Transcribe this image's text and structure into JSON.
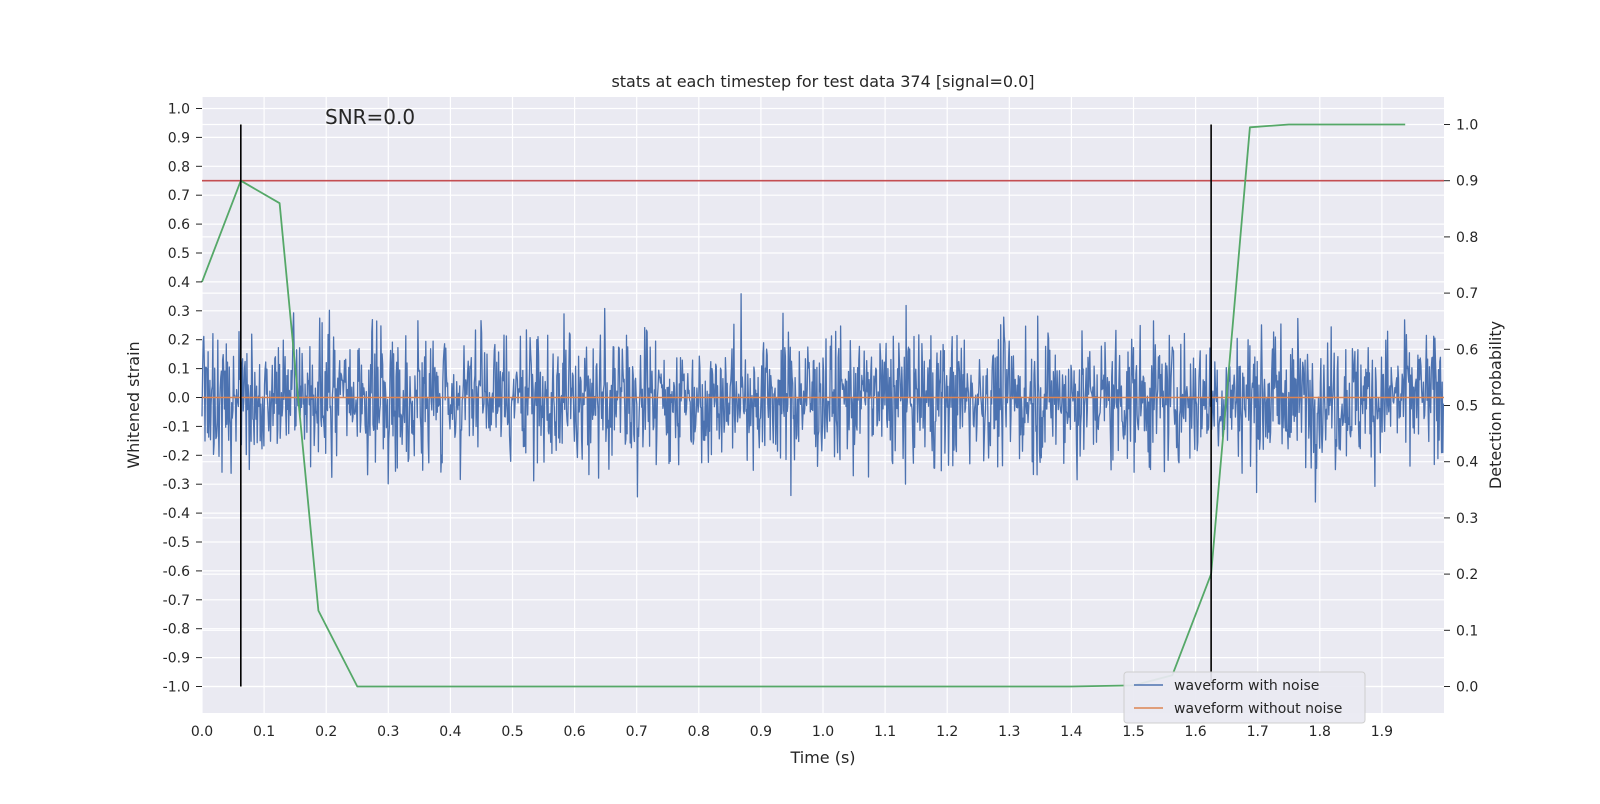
{
  "chart_data": {
    "type": "line",
    "title": "stats at each timestep for test data 374 [signal=0.0]",
    "xlabel": "Time (s)",
    "ylabel": "Whitened strain",
    "y2label": "Detection probability",
    "xlim": [
      0.0,
      2.0
    ],
    "ylim": [
      -1.1,
      1.05
    ],
    "y2lim": [
      -0.05,
      1.03
    ],
    "x_ticks": [
      "0.0",
      "0.1",
      "0.2",
      "0.3",
      "0.4",
      "0.5",
      "0.6",
      "0.7",
      "0.8",
      "0.9",
      "1.0",
      "1.1",
      "1.2",
      "1.3",
      "1.4",
      "1.5",
      "1.6",
      "1.7",
      "1.8",
      "1.9"
    ],
    "y_ticks": [
      "1.0",
      "0.9",
      "0.8",
      "0.7",
      "0.6",
      "0.5",
      "0.4",
      "0.3",
      "0.2",
      "0.1",
      "0.0",
      "-0.1",
      "-0.2",
      "-0.3",
      "-0.4",
      "-0.5",
      "-0.6",
      "-0.7",
      "-0.8",
      "-0.9",
      "-1.0"
    ],
    "y2_ticks": [
      "1.0",
      "0.9",
      "0.8",
      "0.7",
      "0.6",
      "0.5",
      "0.4",
      "0.3",
      "0.2",
      "0.1",
      "0.0"
    ],
    "annotation": "SNR=0.0",
    "grid": true,
    "legend_position": "lower-right",
    "series": [
      {
        "name": "waveform with noise",
        "color": "#4c72b0",
        "axis": "left",
        "description": "dense noise, approximately within -1.0..0.94"
      },
      {
        "name": "waveform without noise",
        "color": "#dd8452",
        "axis": "left",
        "x": [
          0.0,
          2.0
        ],
        "values": [
          0.0,
          0.0
        ]
      },
      {
        "name": "detection probability",
        "color": "#55a868",
        "axis": "right",
        "show_in_legend": false,
        "x": [
          0.0,
          0.0625,
          0.125,
          0.1875,
          0.25,
          0.3,
          0.5,
          1.0,
          1.4,
          1.5,
          1.5625,
          1.625,
          1.6875,
          1.75,
          1.9375
        ],
        "values": [
          0.72,
          0.9,
          0.86,
          0.135,
          0.0,
          0.0,
          0.0,
          0.0,
          0.0,
          0.002,
          0.02,
          0.2,
          0.995,
          1.0,
          1.0
        ]
      },
      {
        "name": "threshold",
        "color": "#c44e52",
        "axis": "right",
        "show_in_legend": false,
        "x": [
          0.0,
          2.0
        ],
        "values": [
          0.9,
          0.9
        ]
      }
    ],
    "vertical_markers": [
      0.0625,
      1.625
    ]
  }
}
